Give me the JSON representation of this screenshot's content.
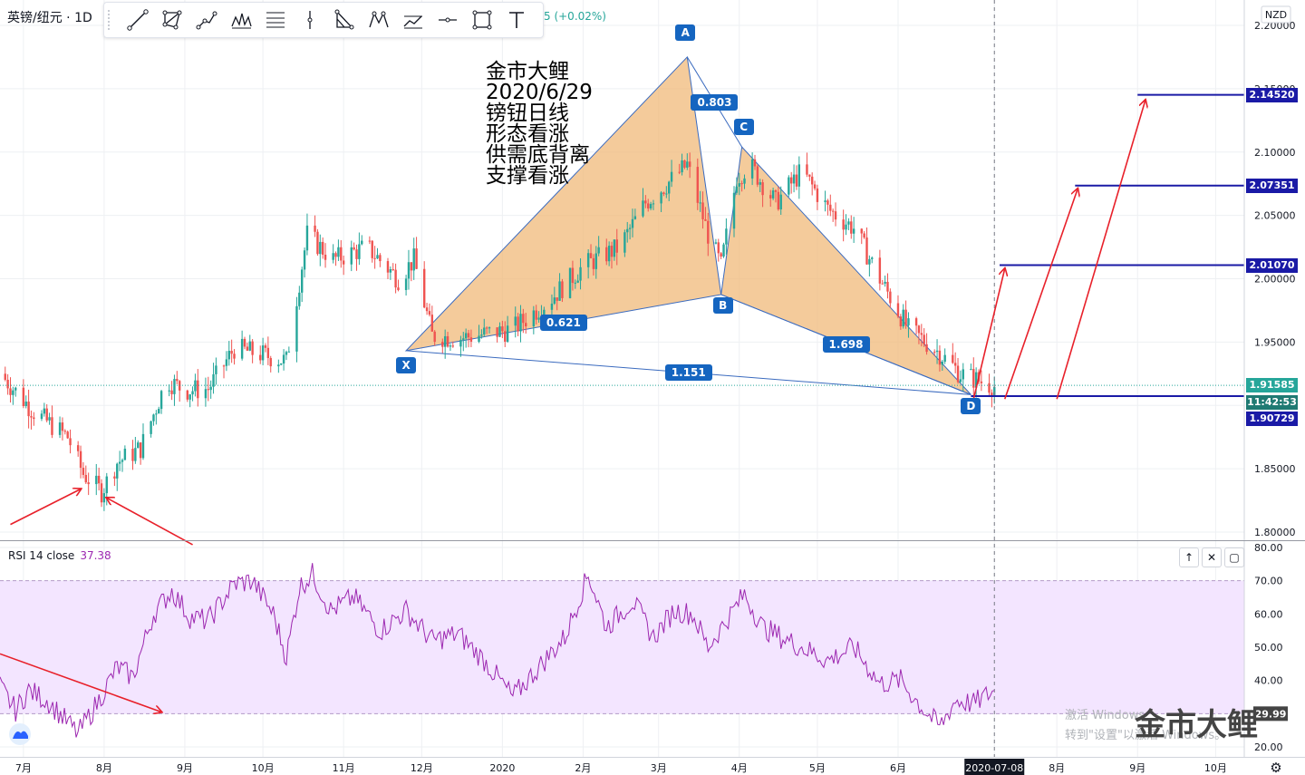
{
  "symbol": "英镑/纽元 · 1D",
  "change_text": "5 (+0.02%)",
  "currency": "NZD",
  "toolbar": [
    "trend-line",
    "shape",
    "path",
    "pitchfork",
    "fib",
    "vertical-line",
    "xabcd",
    "anchored",
    "parallel",
    "horizontal-line",
    "rectangle",
    "text"
  ],
  "note_lines": [
    "金市大鲤",
    "2020/6/29",
    "镑钮日线",
    "形态看涨",
    "供需底背离",
    "支撑看涨"
  ],
  "watermark": {
    "line1": "激活 Windows",
    "line2": "转到\"设置\"以激活 Windows。",
    "brand": "金市大鲤"
  },
  "colors": {
    "up": "#26a69a",
    "down": "#ef5350",
    "pattern_fill": "#f0b97a",
    "accent": "#1565c0",
    "arrow": "#e8202a",
    "rsi": "#9c27b0",
    "rsi_band": "#f3e5ff"
  },
  "chart_data": [
    {
      "type": "candlestick",
      "title": "英镑/纽元 · 1D",
      "y_ticks": [
        "2.20000",
        "2.15000",
        "2.10000",
        "2.05000",
        "2.00000",
        "1.95000",
        "1.90000",
        "1.85000",
        "1.80000"
      ],
      "y_range": [
        1.79,
        2.205
      ],
      "x_ticks": [
        "7月",
        "8月",
        "9月",
        "10月",
        "11月",
        "12月",
        "2020",
        "2月",
        "3月",
        "4月",
        "5月",
        "6月",
        "2020-07-08",
        "8月",
        "9月",
        "10月"
      ],
      "x_range_dates": [
        "2019-06-22",
        "2020-10-12"
      ],
      "current_date_label": "2020-07-08",
      "price_labels": [
        {
          "text": "2.14520",
          "value": 2.1452,
          "style": "target"
        },
        {
          "text": "2.07351",
          "value": 2.07351,
          "style": "target"
        },
        {
          "text": "2.01070",
          "value": 2.0107,
          "style": "target"
        },
        {
          "text": "1.91585",
          "value": 1.91585,
          "style": "last"
        },
        {
          "text": "11:42:53",
          "value": 1.9015,
          "style": "timer"
        },
        {
          "text": "1.90729",
          "value": 1.90729,
          "style": "target"
        }
      ],
      "xabcd_pattern": {
        "points": [
          {
            "label": "X",
            "date": "2019-11-25",
            "value": 1.9432
          },
          {
            "label": "A",
            "date": "2020-03-12",
            "value": 2.175
          },
          {
            "label": "B",
            "date": "2020-03-25",
            "value": 1.9875
          },
          {
            "label": "C",
            "date": "2020-04-02",
            "value": 2.104
          },
          {
            "label": "D",
            "date": "2020-06-29",
            "value": 1.9085
          }
        ],
        "ratios": [
          {
            "text": "0.621",
            "from": "X",
            "to": "B"
          },
          {
            "text": "0.803",
            "from": "A",
            "to": "C"
          },
          {
            "text": "1.698",
            "from": "B",
            "to": "D"
          },
          {
            "text": "1.151",
            "from": "X",
            "to": "D"
          }
        ]
      },
      "target_lines": [
        {
          "value": 2.1452,
          "from_date": "2020-09-01"
        },
        {
          "value": 2.07351,
          "from_date": "2020-08-08"
        },
        {
          "value": 2.0107,
          "from_date": "2020-07-10"
        },
        {
          "value": 1.90729,
          "from_date": "2020-06-29"
        }
      ],
      "annotation_arrows": [
        {
          "from": [
            "2020-06-30",
            1.905
          ],
          "to": [
            "2020-07-12",
            2.008
          ]
        },
        {
          "from": [
            "2020-07-12",
            1.905
          ],
          "to": [
            "2020-08-09",
            2.071
          ]
        },
        {
          "from": [
            "2020-08-01",
            1.905
          ],
          "to": [
            "2020-09-04",
            2.141
          ]
        },
        {
          "from": [
            "2019-06-26",
            1.806
          ],
          "to": [
            "2019-07-23",
            1.834
          ]
        },
        {
          "from": [
            "2019-09-04",
            1.79
          ],
          "to": [
            "2019-08-02",
            1.827
          ]
        }
      ],
      "candles_anchor_path": [
        [
          "2019-06-22",
          1.925
        ],
        [
          "2019-07-05",
          1.895
        ],
        [
          "2019-07-18",
          1.875
        ],
        [
          "2019-07-24",
          1.846
        ],
        [
          "2019-07-31",
          1.832
        ],
        [
          "2019-08-06",
          1.855
        ],
        [
          "2019-08-15",
          1.866
        ],
        [
          "2019-08-25",
          1.92
        ],
        [
          "2019-09-01",
          1.912
        ],
        [
          "2019-09-10",
          1.913
        ],
        [
          "2019-09-20",
          1.945
        ],
        [
          "2019-10-01",
          1.94
        ],
        [
          "2019-10-10",
          1.935
        ],
        [
          "2019-10-18",
          2.035
        ],
        [
          "2019-10-28",
          2.015
        ],
        [
          "2019-11-10",
          2.025
        ],
        [
          "2019-11-22",
          2.0
        ],
        [
          "2019-11-28",
          2.015
        ],
        [
          "2019-12-05",
          1.955
        ],
        [
          "2019-12-15",
          1.953
        ],
        [
          "2020-01-05",
          1.96
        ],
        [
          "2020-01-20",
          1.985
        ],
        [
          "2020-02-01",
          2.01
        ],
        [
          "2020-02-15",
          2.025
        ],
        [
          "2020-02-25",
          2.06
        ],
        [
          "2020-03-07",
          2.08
        ],
        [
          "2020-03-12",
          2.09
        ],
        [
          "2020-03-20",
          2.035
        ],
        [
          "2020-03-25",
          2.01
        ],
        [
          "2020-03-31",
          2.08
        ],
        [
          "2020-04-05",
          2.09
        ],
        [
          "2020-04-15",
          2.06
        ],
        [
          "2020-04-25",
          2.085
        ],
        [
          "2020-05-05",
          2.055
        ],
        [
          "2020-05-15",
          2.04
        ],
        [
          "2020-05-25",
          2.0
        ],
        [
          "2020-06-05",
          1.96
        ],
        [
          "2020-06-15",
          1.945
        ],
        [
          "2020-06-25",
          1.925
        ],
        [
          "2020-07-08",
          1.915
        ]
      ]
    },
    {
      "type": "line",
      "title": "RSI 14 close",
      "current_value": "37.38",
      "y_ticks": [
        "80.00",
        "70.00",
        "60.00",
        "50.00",
        "40.00",
        "30.00",
        "20.00"
      ],
      "y_range": [
        17.5,
        81.5
      ],
      "band": [
        30,
        70
      ],
      "last_label": "29.99",
      "series": [
        {
          "name": "RSI 14 close",
          "points": [
            [
              "2019-06-22",
              38
            ],
            [
              "2019-06-28",
              31
            ],
            [
              "2019-07-03",
              37
            ],
            [
              "2019-07-10",
              34
            ],
            [
              "2019-07-16",
              29
            ],
            [
              "2019-07-22",
              24
            ],
            [
              "2019-07-30",
              34
            ],
            [
              "2019-08-06",
              44
            ],
            [
              "2019-08-12",
              41
            ],
            [
              "2019-08-20",
              60
            ],
            [
              "2019-08-27",
              67
            ],
            [
              "2019-09-03",
              59
            ],
            [
              "2019-09-10",
              58
            ],
            [
              "2019-09-20",
              69
            ],
            [
              "2019-09-27",
              70
            ],
            [
              "2019-10-05",
              60
            ],
            [
              "2019-10-10",
              47
            ],
            [
              "2019-10-15",
              68
            ],
            [
              "2019-10-20",
              72
            ],
            [
              "2019-10-27",
              61
            ],
            [
              "2019-11-05",
              65
            ],
            [
              "2019-11-15",
              55
            ],
            [
              "2019-11-25",
              61
            ],
            [
              "2019-12-05",
              52
            ],
            [
              "2019-12-15",
              54
            ],
            [
              "2019-12-25",
              46
            ],
            [
              "2020-01-05",
              35
            ],
            [
              "2020-01-15",
              44
            ],
            [
              "2020-01-25",
              53
            ],
            [
              "2020-02-03",
              72
            ],
            [
              "2020-02-10",
              56
            ],
            [
              "2020-02-20",
              64
            ],
            [
              "2020-02-28",
              53
            ],
            [
              "2020-03-07",
              61
            ],
            [
              "2020-03-14",
              60
            ],
            [
              "2020-03-20",
              50
            ],
            [
              "2020-03-27",
              58
            ],
            [
              "2020-04-03",
              66
            ],
            [
              "2020-04-10",
              56
            ],
            [
              "2020-04-17",
              53
            ],
            [
              "2020-04-25",
              50
            ],
            [
              "2020-05-05",
              46
            ],
            [
              "2020-05-15",
              50
            ],
            [
              "2020-05-25",
              39
            ],
            [
              "2020-06-02",
              40
            ],
            [
              "2020-06-10",
              32
            ],
            [
              "2020-06-17",
              26
            ],
            [
              "2020-06-23",
              34
            ],
            [
              "2020-06-30",
              33
            ],
            [
              "2020-07-08",
              37
            ]
          ]
        }
      ]
    }
  ]
}
